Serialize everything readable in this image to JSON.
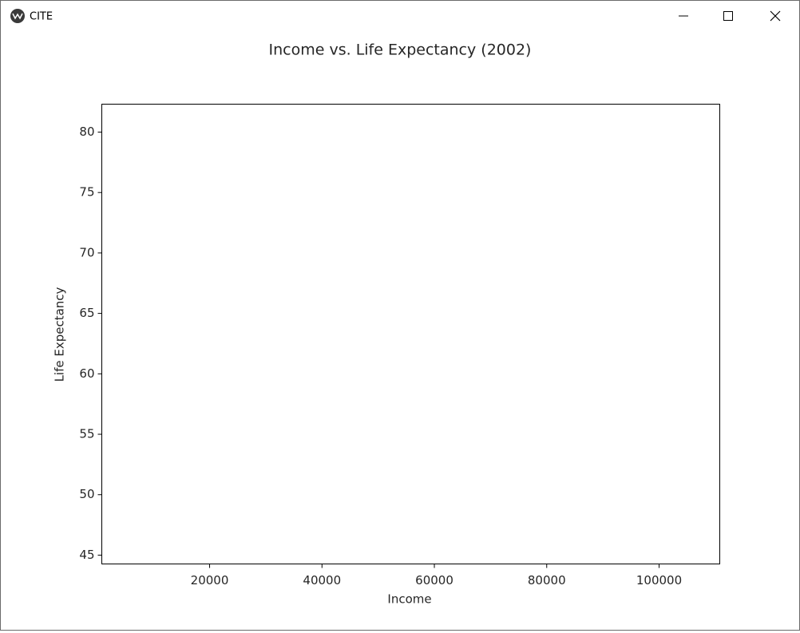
{
  "window": {
    "title": "CITE"
  },
  "chart_data": {
    "type": "scatter",
    "title": "Income vs. Life Expectancy (2002)",
    "x_label": "Income",
    "y_label": "Life Expectancy",
    "xlim": [
      810,
      110800
    ],
    "xticks": [
      20000,
      40000,
      60000,
      80000,
      100000
    ],
    "ylim": [
      44.27,
      82.31
    ],
    "yticks": [
      45,
      50,
      55,
      60,
      65,
      70,
      75,
      80
    ]
  }
}
